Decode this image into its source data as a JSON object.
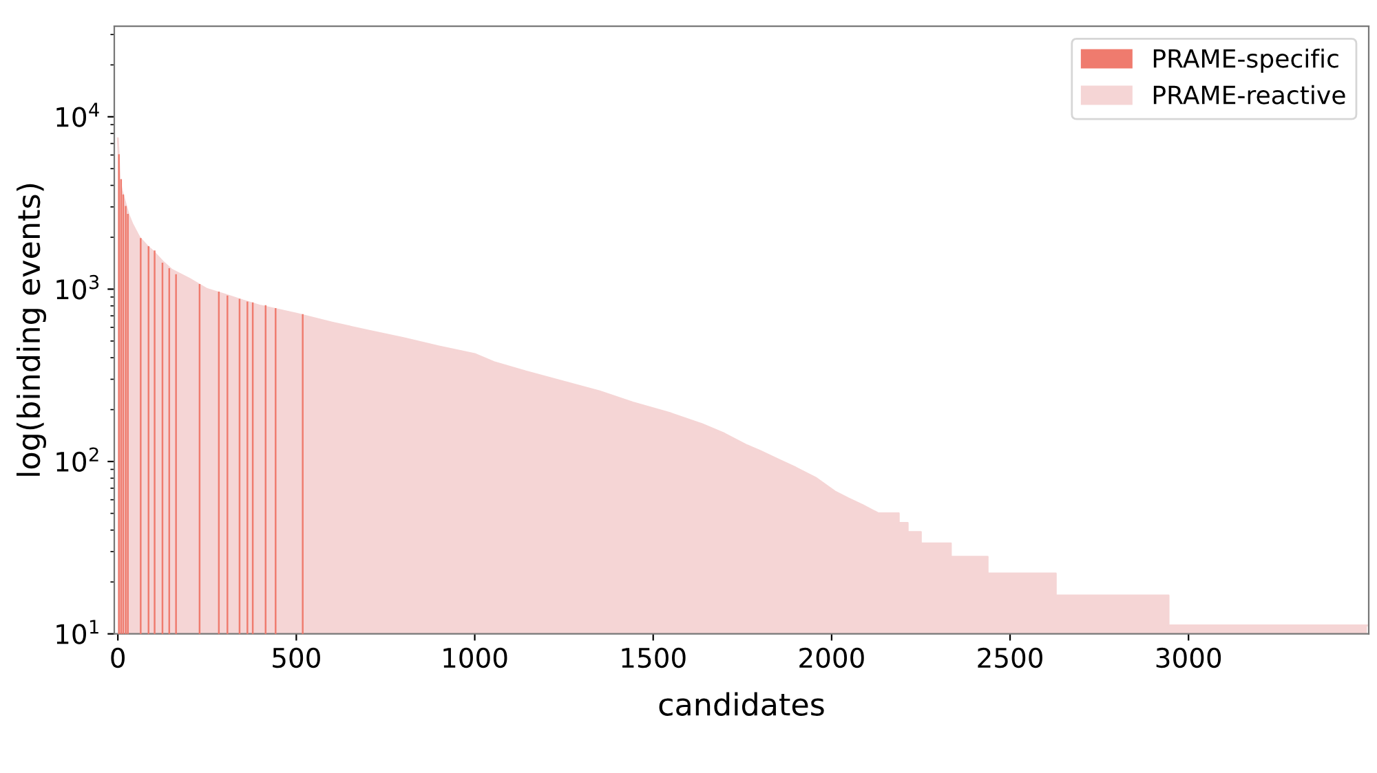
{
  "chart_data": {
    "type": "bar",
    "xlabel": "candidates",
    "ylabel": "log(binding events)",
    "log": "y",
    "xlim": [
      -10,
      3505
    ],
    "ylim": [
      10,
      33500
    ],
    "xticks": [
      0,
      500,
      1000,
      1500,
      2000,
      2500,
      3000
    ],
    "yticks": [
      {
        "value": 10,
        "label": "10$^{1}$"
      },
      {
        "value": 100,
        "label": "10$^{2}$"
      },
      {
        "value": 1000,
        "label": "10$^{3}$"
      },
      {
        "value": 10000,
        "label": "10$^{4}$"
      }
    ],
    "legend": "top right",
    "grid": false,
    "series": [
      {
        "name": "PRAME-specific",
        "color": "#ef7b6e",
        "x": [
          3,
          9,
          15,
          22,
          28,
          64,
          86,
          103,
          125,
          144,
          163,
          229,
          283,
          307,
          341,
          363,
          378,
          414,
          442,
          518
        ],
        "values": [
          6000,
          4300,
          3500,
          3000,
          2700,
          1950,
          1750,
          1650,
          1400,
          1300,
          1200,
          1050,
          950,
          900,
          860,
          830,
          820,
          790,
          760,
          700
        ]
      },
      {
        "name": "PRAME-reactive",
        "type": "area",
        "color": "#f5d5d5",
        "x": [
          0,
          3,
          5,
          10,
          20,
          30,
          40,
          60,
          80,
          100,
          125,
          150,
          200,
          250,
          300,
          350,
          400,
          450,
          500,
          600,
          700,
          800,
          900,
          1000,
          1057,
          1150,
          1250,
          1350,
          1443,
          1550,
          1636,
          1700,
          1763,
          1800,
          1854,
          1900,
          1957,
          2009,
          2047,
          2086,
          2131,
          2188,
          2188,
          2213,
          2213,
          2250,
          2250,
          2334,
          2334,
          2437,
          2437,
          2628,
          2628,
          2944,
          2944,
          3500
        ],
        "values": [
          7500,
          5500,
          4400,
          3800,
          3200,
          2700,
          2400,
          2000,
          1800,
          1650,
          1450,
          1300,
          1150,
          1000,
          930,
          860,
          800,
          760,
          720,
          640,
          575,
          520,
          465,
          420,
          375,
          330,
          290,
          255,
          220,
          190,
          165,
          145,
          124,
          115,
          102,
          92,
          80,
          67,
          61,
          56,
          50,
          50,
          44,
          44,
          39,
          39,
          33.5,
          33.5,
          28,
          28,
          22.4,
          22.4,
          16.7,
          16.7,
          11.2,
          11.2
        ]
      }
    ]
  }
}
